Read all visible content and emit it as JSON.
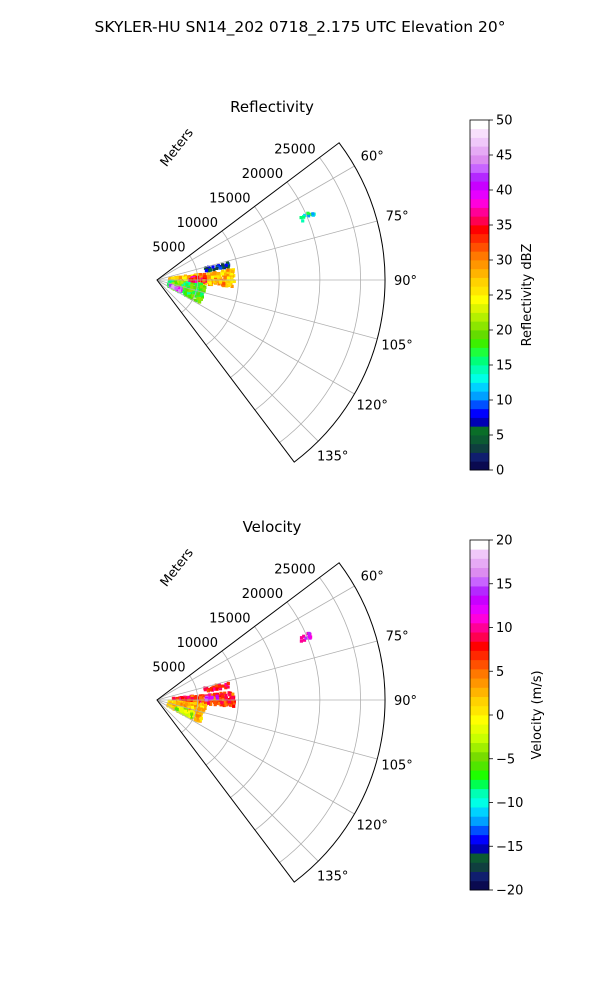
{
  "figure": {
    "suptitle": "SKYLER-HU  SN14_202  0718_2.175 UTC Elevation 20°"
  },
  "chart_data": [
    {
      "type": "heatmap",
      "subtype": "polar-sector-radar",
      "title": "Reflectivity",
      "radial_label": "Meters",
      "theta_range_deg": [
        53,
        143
      ],
      "theta_ticks": [
        "60°",
        "75°",
        "90°",
        "105°",
        "120°",
        "135°"
      ],
      "theta_tick_values": [
        60,
        75,
        90,
        105,
        120,
        135
      ],
      "r_range": [
        0,
        28000
      ],
      "r_ticks": [
        "5000",
        "10000",
        "15000",
        "20000",
        "25000"
      ],
      "r_tick_values": [
        5000,
        10000,
        15000,
        20000,
        25000
      ],
      "grid": true,
      "colorbar": {
        "label": "Reflectivity dBZ",
        "range": [
          0,
          50
        ],
        "ticks": [
          "0",
          "5",
          "10",
          "15",
          "20",
          "25",
          "30",
          "35",
          "40",
          "45",
          "50"
        ],
        "tick_values": [
          0,
          5,
          10,
          15,
          20,
          25,
          30,
          35,
          40,
          45,
          50
        ],
        "colors": [
          "#0a0a50",
          "#101e6e",
          "#0f3f3f",
          "#0c5a32",
          "#0a6e28",
          "#0000b4",
          "#0000ff",
          "#0050ff",
          "#00a0ff",
          "#00d2ff",
          "#00ffe6",
          "#00ffb4",
          "#00ff7a",
          "#1eff3c",
          "#3cf000",
          "#64dc00",
          "#8ce600",
          "#b4f000",
          "#dcf500",
          "#ffff00",
          "#ffe600",
          "#ffd200",
          "#ffb400",
          "#ff9600",
          "#ff7800",
          "#ff5000",
          "#ff2800",
          "#ff0000",
          "#ff0050",
          "#ff0096",
          "#ff00dc",
          "#e600ff",
          "#c800ff",
          "#b428ff",
          "#c864ff",
          "#dc8cf0",
          "#e6aaf5",
          "#f0c8fa",
          "#f8e0fc",
          "#ffffff"
        ]
      },
      "echo_summary": [
        {
          "theta_deg": [
            82,
            95
          ],
          "r_m": [
            1500,
            9500
          ],
          "dbz": 28
        },
        {
          "theta_deg": [
            95,
            118
          ],
          "r_m": [
            1500,
            6000
          ],
          "dbz": 18
        },
        {
          "theta_deg": [
            86,
            92
          ],
          "r_m": [
            4000,
            6000
          ],
          "dbz": 35
        },
        {
          "theta_deg": [
            110,
            116
          ],
          "r_m": [
            1800,
            3200
          ],
          "dbz": 42
        },
        {
          "theta_deg": [
            76,
            80
          ],
          "r_m": [
            6000,
            9000
          ],
          "dbz": 6
        },
        {
          "theta_deg": [
            66,
            68
          ],
          "r_m": [
            19000,
            21000
          ],
          "dbz": 14
        }
      ]
    },
    {
      "type": "heatmap",
      "subtype": "polar-sector-radar",
      "title": "Velocity",
      "radial_label": "Meters",
      "theta_range_deg": [
        53,
        143
      ],
      "theta_ticks": [
        "60°",
        "75°",
        "90°",
        "105°",
        "120°",
        "135°"
      ],
      "theta_tick_values": [
        60,
        75,
        90,
        105,
        120,
        135
      ],
      "r_range": [
        0,
        28000
      ],
      "r_ticks": [
        "5000",
        "10000",
        "15000",
        "20000",
        "25000"
      ],
      "r_tick_values": [
        5000,
        10000,
        15000,
        20000,
        25000
      ],
      "grid": true,
      "colorbar": {
        "label": "Velocity (m/s)",
        "range": [
          -20,
          20
        ],
        "ticks": [
          "−20",
          "−15",
          "−10",
          "−5",
          "0",
          "5",
          "10",
          "15",
          "20"
        ],
        "tick_values": [
          -20,
          -15,
          -10,
          -5,
          0,
          5,
          10,
          15,
          20
        ],
        "colors": [
          "#0a0a50",
          "#101e6e",
          "#0f3f3f",
          "#0c5a32",
          "#0000b4",
          "#0000ff",
          "#0050ff",
          "#00a0ff",
          "#00d2ff",
          "#00ffe6",
          "#00ffb4",
          "#00ff50",
          "#1eff00",
          "#50e600",
          "#78dc00",
          "#a0f000",
          "#c8ff00",
          "#e6ff00",
          "#ffff00",
          "#ffe600",
          "#ffd200",
          "#ffb400",
          "#ff9600",
          "#ff7800",
          "#ff5000",
          "#ff2800",
          "#ff0000",
          "#ff0050",
          "#ff0096",
          "#ff00dc",
          "#e600ff",
          "#c800ff",
          "#b428ff",
          "#c864ff",
          "#dc8cf0",
          "#e6aaf5",
          "#f0c8fa",
          "#ffffff"
        ]
      },
      "echo_summary": [
        {
          "theta_deg": [
            84,
            95
          ],
          "r_m": [
            2000,
            9500
          ],
          "velocity": 7
        },
        {
          "theta_deg": [
            95,
            118
          ],
          "r_m": [
            1500,
            6000
          ],
          "velocity": 2
        },
        {
          "theta_deg": [
            108,
            118
          ],
          "r_m": [
            2500,
            5000
          ],
          "velocity": -3
        },
        {
          "theta_deg": [
            86,
            90
          ],
          "r_m": [
            6000,
            7500
          ],
          "velocity": 13
        },
        {
          "theta_deg": [
            76,
            80
          ],
          "r_m": [
            6000,
            9000
          ],
          "velocity": 8
        },
        {
          "theta_deg": [
            66,
            68
          ],
          "r_m": [
            19000,
            21000
          ],
          "velocity": 12
        }
      ]
    }
  ]
}
